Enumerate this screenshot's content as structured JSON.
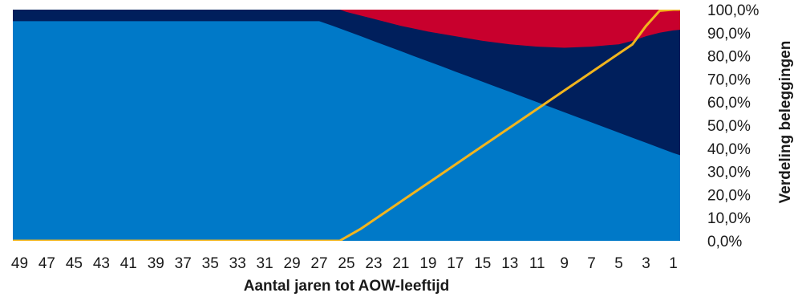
{
  "chart_data": {
    "type": "area",
    "title": "",
    "xlabel": "Aantal jaren tot AOW-leeftijd",
    "ylabel": "Verdeling beleggingen",
    "x_reversed": true,
    "xlim": [
      49.5,
      0.5
    ],
    "ylim": [
      0,
      100
    ],
    "x_ticks": [
      49,
      47,
      45,
      43,
      41,
      39,
      37,
      35,
      33,
      31,
      29,
      27,
      25,
      23,
      21,
      19,
      17,
      15,
      13,
      11,
      9,
      7,
      5,
      3,
      1
    ],
    "y_ticks": [
      "0,0%",
      "10,0%",
      "20,0%",
      "30,0%",
      "40,0%",
      "50,0%",
      "60,0%",
      "70,0%",
      "80,0%",
      "90,0%",
      "100,0%"
    ],
    "grid": false,
    "legend": "none",
    "colors": {
      "area_bottom": "#0079c8",
      "area_middle": "#001f5c",
      "area_top": "#c8002d",
      "line": "#f2b51d"
    },
    "series": [
      {
        "kind": "stacked-area-bottom",
        "points": [
          [
            49.5,
            95
          ],
          [
            27,
            95
          ],
          [
            26,
            93
          ],
          [
            25,
            90.8
          ],
          [
            24,
            88.6
          ],
          [
            23,
            86.4
          ],
          [
            22,
            84.2
          ],
          [
            21,
            82
          ],
          [
            20,
            79.8
          ],
          [
            19,
            77.6
          ],
          [
            18,
            75.4
          ],
          [
            17,
            73.2
          ],
          [
            16,
            71
          ],
          [
            15,
            68.8
          ],
          [
            14,
            66.6
          ],
          [
            13,
            64.4
          ],
          [
            12,
            62.2
          ],
          [
            11,
            60
          ],
          [
            10,
            57.8
          ],
          [
            9,
            55.6
          ],
          [
            8,
            53.4
          ],
          [
            7,
            51.2
          ],
          [
            6,
            49
          ],
          [
            5,
            46.8
          ],
          [
            4,
            44.6
          ],
          [
            3,
            42.4
          ],
          [
            2,
            40.2
          ],
          [
            1,
            38
          ],
          [
            0.5,
            37
          ]
        ]
      },
      {
        "kind": "stacked-area-middle-top-edge",
        "points": [
          [
            49.5,
            100
          ],
          [
            25.5,
            100
          ],
          [
            25,
            99
          ],
          [
            23,
            96
          ],
          [
            21,
            93
          ],
          [
            19,
            90.5
          ],
          [
            17,
            88.5
          ],
          [
            15,
            86.5
          ],
          [
            13,
            85
          ],
          [
            11,
            84
          ],
          [
            9,
            83.5
          ],
          [
            7,
            84
          ],
          [
            5,
            85
          ],
          [
            4,
            86.5
          ],
          [
            3,
            88.5
          ],
          [
            2,
            90
          ],
          [
            1,
            91
          ],
          [
            0.5,
            91.3
          ]
        ]
      },
      {
        "kind": "line",
        "points": [
          [
            49.5,
            0
          ],
          [
            25.5,
            0
          ],
          [
            24,
            5
          ],
          [
            22,
            13
          ],
          [
            20,
            21
          ],
          [
            18,
            29
          ],
          [
            16,
            37
          ],
          [
            14,
            45
          ],
          [
            12,
            53
          ],
          [
            10,
            61
          ],
          [
            8,
            69
          ],
          [
            6,
            77
          ],
          [
            4,
            85
          ],
          [
            3,
            93
          ],
          [
            2,
            99.5
          ],
          [
            1,
            100
          ],
          [
            0.5,
            100
          ]
        ]
      }
    ]
  }
}
